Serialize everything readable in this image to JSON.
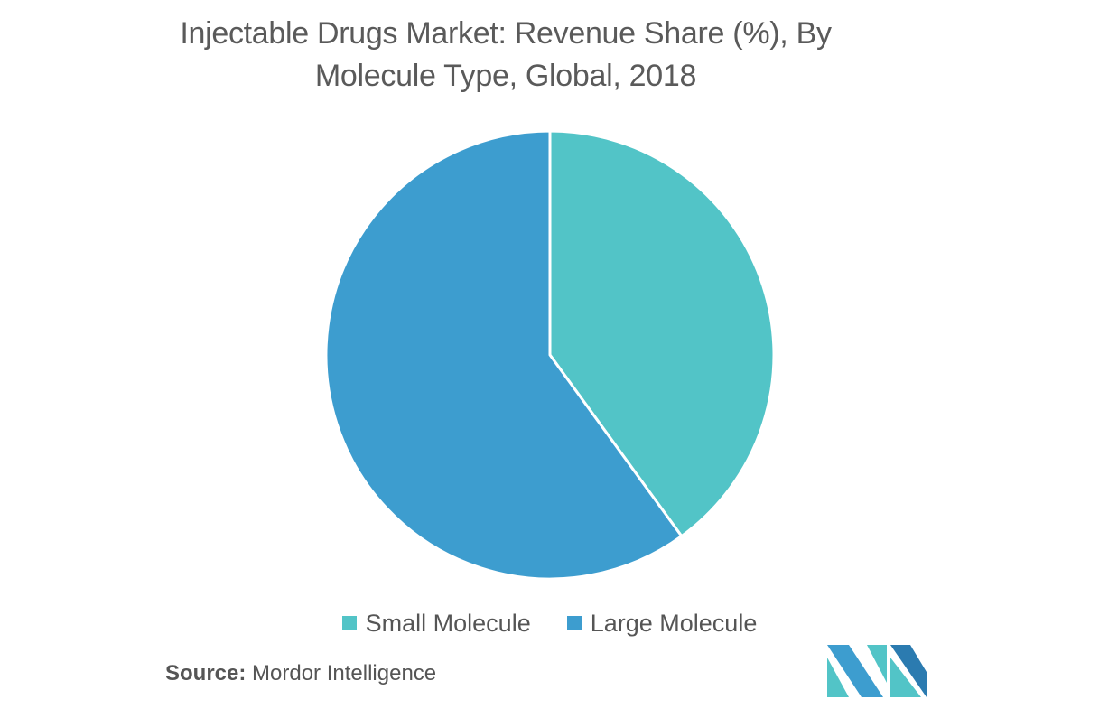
{
  "chart_data": {
    "type": "pie",
    "title": "Injectable Drugs Market: Revenue Share (%), By Molecule Type, Global, 2018",
    "title_lines": [
      "Injectable Drugs Market: Revenue Share (%), By",
      "Molecule Type, Global, 2018"
    ],
    "start_angle": "12 o'clock",
    "direction": "clockwise",
    "legend_position": "bottom",
    "slices": [
      {
        "label": "Small Molecule",
        "value": 40,
        "color": "#52c4c7"
      },
      {
        "label": "Large Molecule",
        "value": 60,
        "color": "#3d9dcf"
      }
    ]
  },
  "source": {
    "label": "Source:",
    "text": "Mordor Intelligence"
  },
  "logo": {
    "icon": "mordor-intelligence-logo-icon",
    "colors": [
      "#52c4c7",
      "#3d9dcf",
      "#2b7bb0"
    ]
  }
}
